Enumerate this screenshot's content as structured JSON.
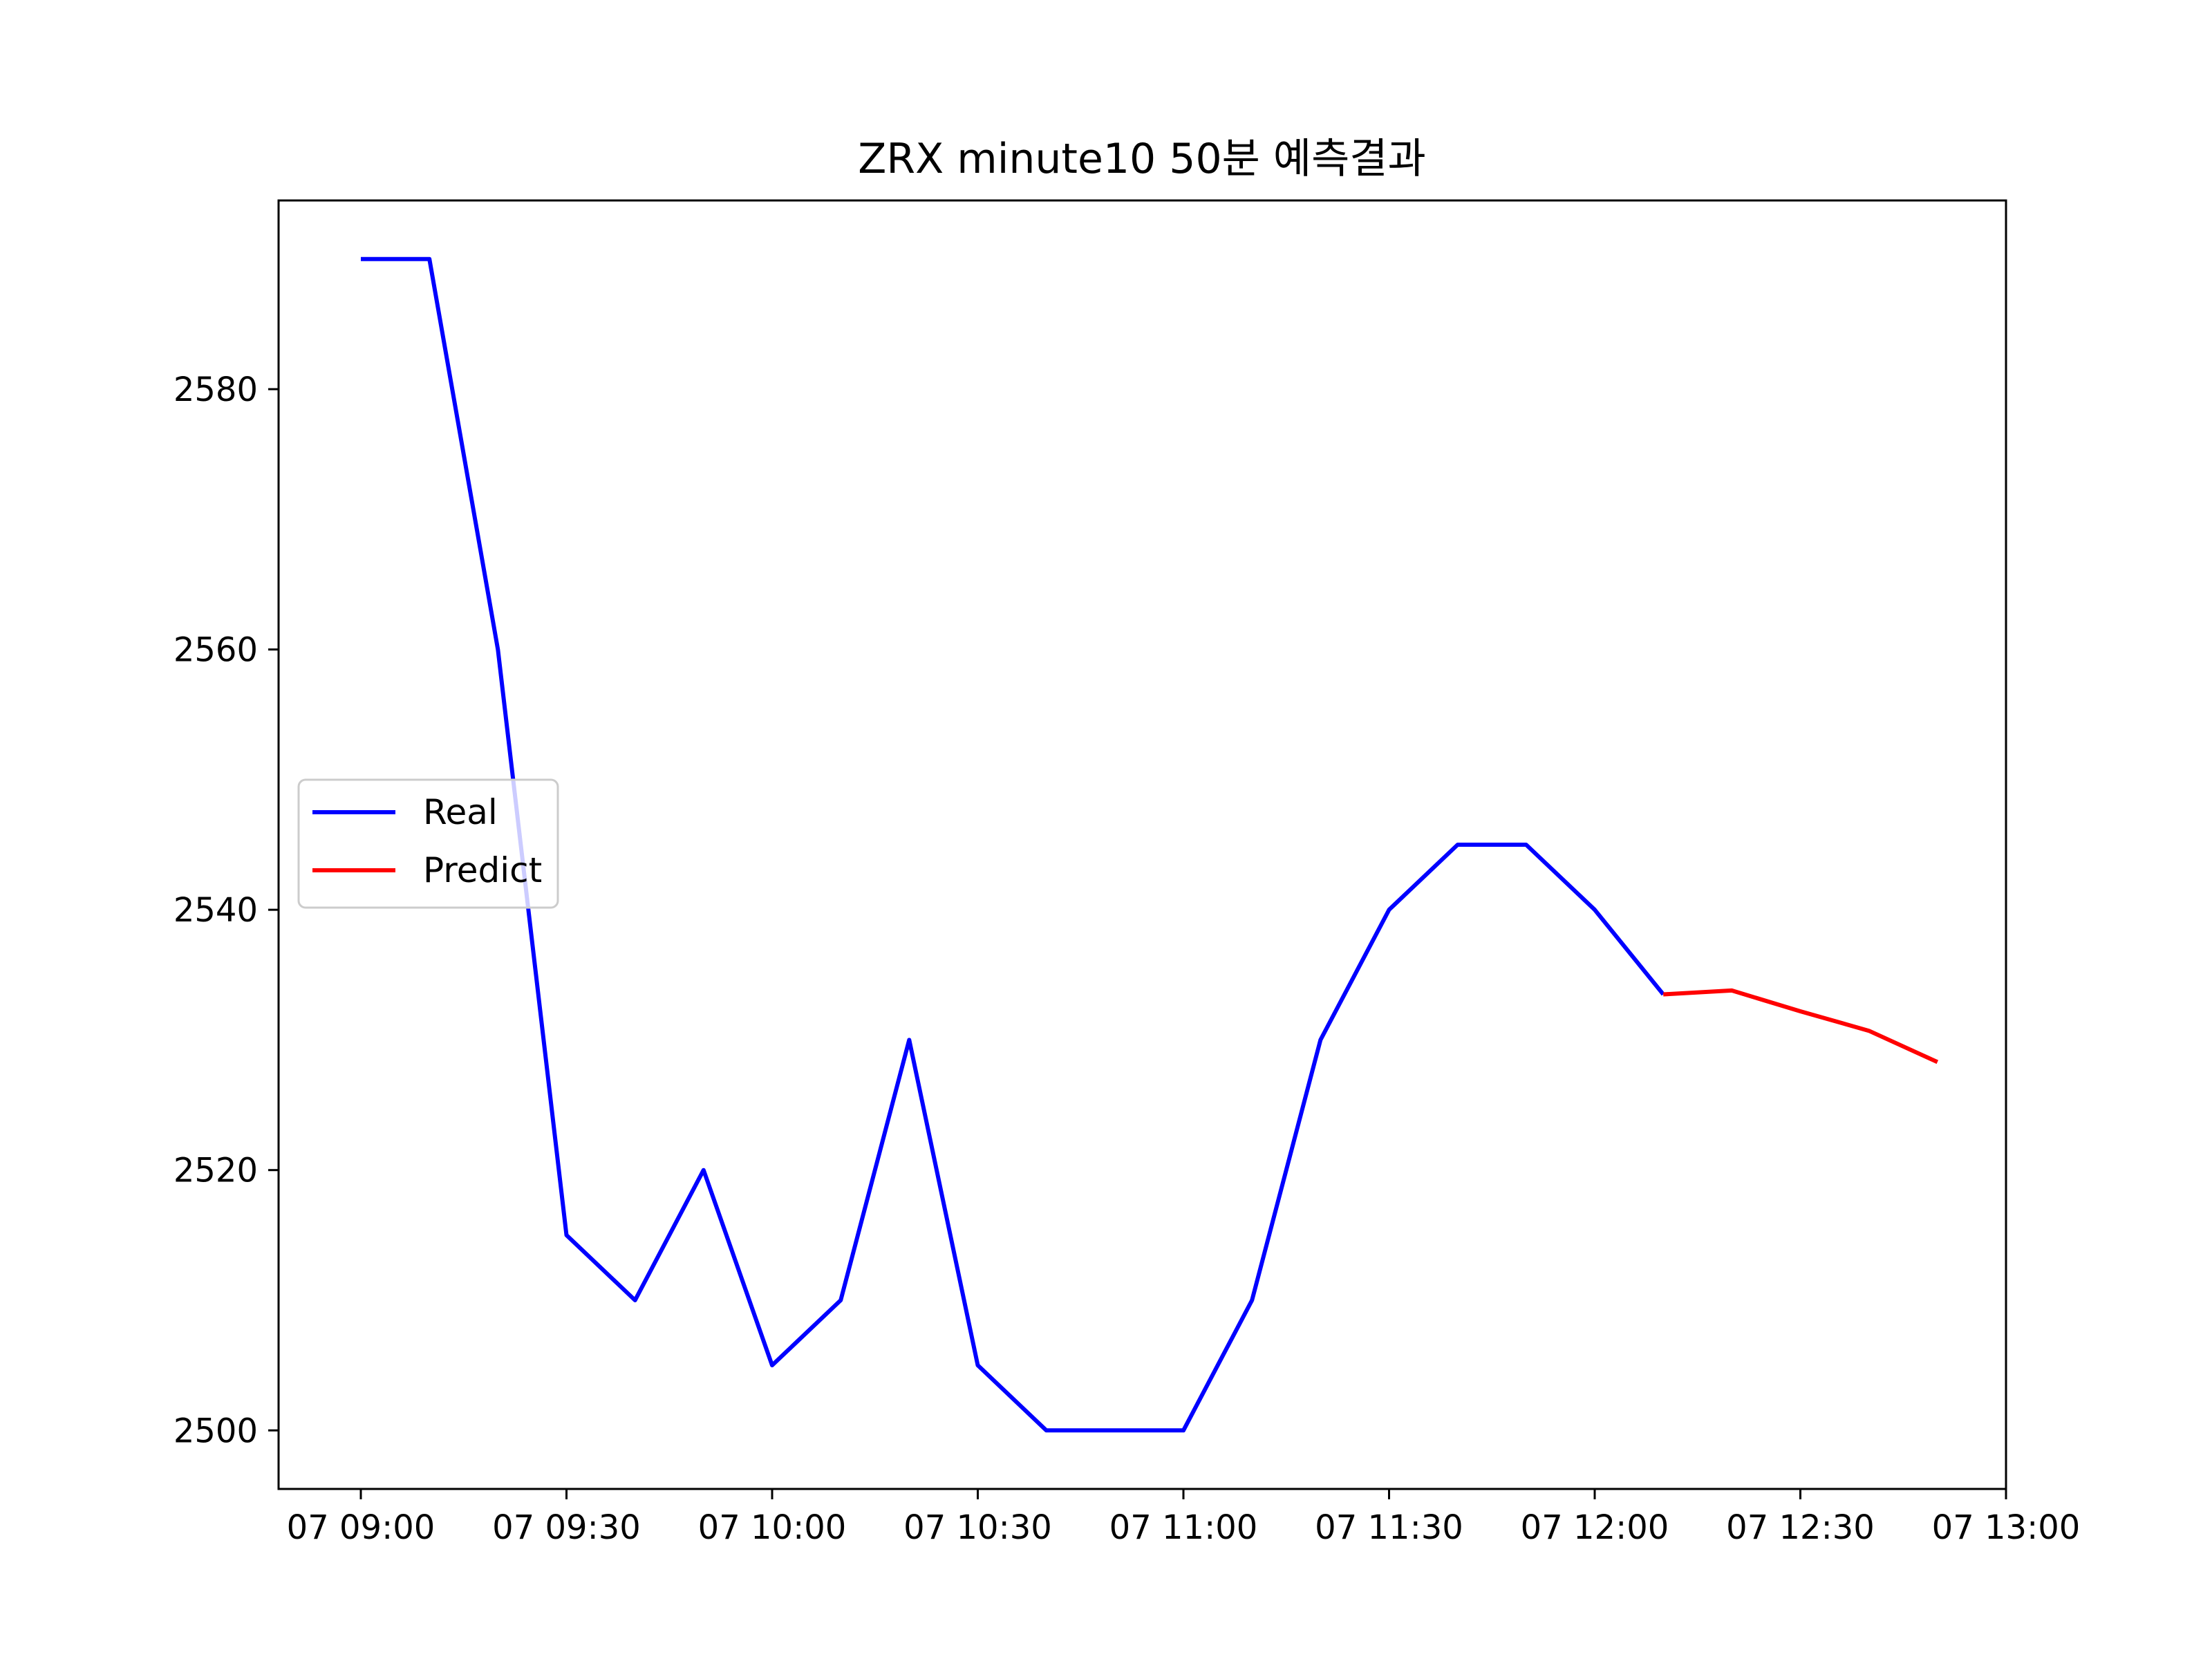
{
  "chart_data": {
    "type": "line",
    "title": "ZRX minute10 50분 예측결과",
    "xlabel": "",
    "ylabel": "",
    "x_ticks": [
      "07 09:00",
      "07 09:30",
      "07 10:00",
      "07 10:30",
      "07 11:00",
      "07 11:30",
      "07 12:00",
      "07 12:30",
      "07 13:00"
    ],
    "x_tick_minutes": [
      0,
      30,
      60,
      90,
      120,
      150,
      180,
      210,
      240
    ],
    "y_ticks": [
      2500,
      2520,
      2540,
      2560,
      2580
    ],
    "xlim": [
      "07 08:48",
      "07 13:00"
    ],
    "ylim": [
      2495.5,
      2594.5
    ],
    "grid": false,
    "legend_position": "center-left",
    "series": [
      {
        "name": "Real",
        "color": "#0000ff",
        "x": [
          "07 09:00",
          "07 09:10",
          "07 09:20",
          "07 09:30",
          "07 09:40",
          "07 09:50",
          "07 10:00",
          "07 10:10",
          "07 10:20",
          "07 10:30",
          "07 10:40",
          "07 10:50",
          "07 11:00",
          "07 11:10",
          "07 11:20",
          "07 11:30",
          "07 11:40",
          "07 11:50",
          "07 12:00",
          "07 12:10"
        ],
        "values": [
          2590,
          2590,
          2560,
          2515,
          2510,
          2520,
          2505,
          2510,
          2530,
          2505,
          2500,
          2500,
          2500,
          2510,
          2530,
          2540,
          2545,
          2545,
          2540,
          2533.5
        ]
      },
      {
        "name": "Predict",
        "color": "#ff0000",
        "x": [
          "07 12:10",
          "07 12:20",
          "07 12:30",
          "07 12:40",
          "07 12:50"
        ],
        "values": [
          2533.5,
          2533.8,
          2532.2,
          2530.7,
          2528.3
        ]
      }
    ]
  }
}
